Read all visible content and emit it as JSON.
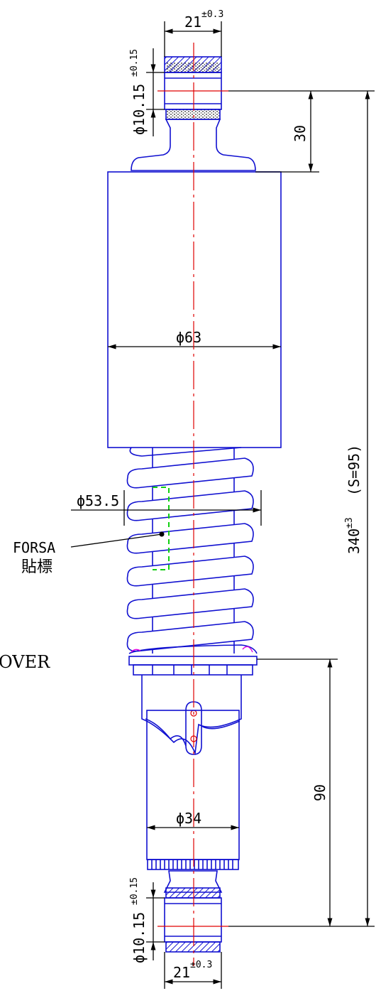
{
  "dimensions": {
    "top_eye_width": "21",
    "top_eye_width_tol": "±0.3",
    "top_bore": "ϕ10.15",
    "top_bore_tol": "±0.15",
    "top_offset": "30",
    "cylinder_diameter": "ϕ63",
    "spring_diameter": "ϕ53.5",
    "total_length": "340",
    "total_length_tol": "±3",
    "stroke": "(S=95)",
    "lower_offset": "90",
    "body_diameter": "ϕ34",
    "bottom_bore": "ϕ10.15",
    "bottom_bore_tol": "±0.15",
    "bottom_eye_width": "21",
    "bottom_eye_width_tol": "±0.3"
  },
  "labels": {
    "sticker_brand": "FORSA",
    "sticker_text": "貼標",
    "cover_text": "OVER"
  },
  "colors": {
    "outline": "#1010d0",
    "centerline": "#e00000",
    "sticker_outline": "#10d010",
    "dimension": "#000000"
  }
}
